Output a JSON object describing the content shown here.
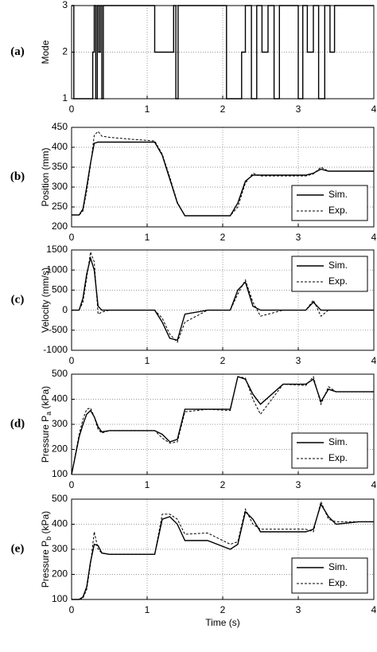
{
  "chart_data": [
    {
      "type": "line",
      "panel_label": "(a)",
      "ylabel": [
        "Mode"
      ],
      "x": [
        0,
        0.03,
        0.03,
        0.28,
        0.28,
        0.3,
        0.3,
        0.32,
        0.32,
        0.34,
        0.34,
        0.36,
        0.36,
        0.38,
        0.38,
        0.4,
        0.4,
        0.42,
        0.42,
        1.1,
        1.1,
        1.35,
        1.35,
        1.38,
        1.38,
        1.41,
        1.41,
        1.44,
        1.44,
        2.05,
        2.05,
        2.25,
        2.25,
        2.3,
        2.3,
        2.38,
        2.38,
        2.45,
        2.45,
        2.52,
        2.52,
        2.6,
        2.6,
        2.68,
        2.68,
        2.75,
        2.75,
        2.8,
        2.8,
        3.0,
        3.0,
        3.06,
        3.06,
        3.12,
        3.12,
        3.2,
        3.2,
        3.27,
        3.27,
        3.35,
        3.35,
        3.42,
        3.42,
        3.48,
        3.48,
        3.55,
        3.55,
        4.0
      ],
      "series": [
        {
          "color": "#000000",
          "linestyle": "solid",
          "values": [
            3,
            3,
            1,
            1,
            2,
            2,
            3,
            3,
            1,
            1,
            3,
            3,
            2,
            2,
            3,
            3,
            1,
            1,
            3,
            3,
            2,
            2,
            3,
            3,
            1,
            1,
            3,
            3,
            3,
            3,
            1,
            1,
            2,
            2,
            3,
            3,
            1,
            1,
            3,
            3,
            2,
            2,
            3,
            3,
            1,
            1,
            3,
            3,
            3,
            3,
            1,
            1,
            3,
            3,
            2,
            2,
            3,
            3,
            1,
            1,
            3,
            3,
            2,
            2,
            3,
            3,
            3,
            3
          ]
        }
      ],
      "xlim": [
        0,
        4
      ],
      "xticks": [
        0,
        1,
        2,
        3,
        4
      ],
      "ylim": [
        1,
        3
      ],
      "yticks": [
        1,
        2,
        3
      ],
      "grid": true
    },
    {
      "type": "line",
      "panel_label": "(b)",
      "ylabel": [
        "Position (mm)"
      ],
      "x": [
        0,
        0.1,
        0.15,
        0.2,
        0.25,
        0.3,
        0.35,
        0.4,
        0.5,
        0.8,
        1.1,
        1.2,
        1.3,
        1.4,
        1.5,
        1.8,
        2.1,
        2.2,
        2.3,
        2.4,
        2.5,
        2.8,
        3.1,
        3.2,
        3.3,
        3.4,
        3.5,
        3.8,
        4.0
      ],
      "series": [
        {
          "name": "Sim.",
          "color": "#000000",
          "linestyle": "solid",
          "values": [
            230,
            230,
            245,
            300,
            360,
            410,
            413,
            413,
            413,
            413,
            413,
            380,
            320,
            260,
            228,
            228,
            228,
            260,
            315,
            330,
            330,
            330,
            330,
            335,
            345,
            340,
            340,
            340,
            340
          ]
        },
        {
          "name": "Exp.",
          "color": "#000000",
          "linestyle": "dashed",
          "values": [
            230,
            230,
            240,
            290,
            355,
            430,
            440,
            428,
            425,
            420,
            416,
            383,
            325,
            262,
            228,
            228,
            228,
            250,
            310,
            335,
            328,
            328,
            328,
            333,
            350,
            340,
            340,
            340,
            340
          ]
        }
      ],
      "xlim": [
        0,
        4
      ],
      "xticks": [
        0,
        1,
        2,
        3,
        4
      ],
      "ylim": [
        200,
        450
      ],
      "yticks": [
        200,
        250,
        300,
        350,
        400,
        450
      ],
      "grid": true,
      "legend": "lower right"
    },
    {
      "type": "line",
      "panel_label": "(c)",
      "ylabel": [
        "Velocity (mm/s)"
      ],
      "x": [
        0,
        0.1,
        0.15,
        0.2,
        0.25,
        0.3,
        0.35,
        0.4,
        0.5,
        0.8,
        1.1,
        1.2,
        1.3,
        1.4,
        1.5,
        1.8,
        2.1,
        2.2,
        2.3,
        2.4,
        2.5,
        2.8,
        3.1,
        3.2,
        3.3,
        3.4,
        3.5,
        3.8,
        4.0
      ],
      "series": [
        {
          "name": "Sim.",
          "color": "#000000",
          "linestyle": "solid",
          "values": [
            0,
            0,
            300,
            900,
            1300,
            1000,
            100,
            0,
            0,
            0,
            0,
            -300,
            -700,
            -750,
            -100,
            0,
            0,
            500,
            700,
            100,
            0,
            0,
            0,
            200,
            0,
            0,
            0,
            0,
            0
          ]
        },
        {
          "name": "Exp.",
          "color": "#000000",
          "linestyle": "dashed",
          "values": [
            0,
            0,
            200,
            800,
            1450,
            1200,
            -100,
            -50,
            0,
            0,
            0,
            -200,
            -600,
            -800,
            -300,
            0,
            0,
            400,
            750,
            200,
            -150,
            0,
            0,
            250,
            -150,
            0,
            0,
            0,
            0
          ]
        }
      ],
      "xlim": [
        0,
        4
      ],
      "xticks": [
        0,
        1,
        2,
        3,
        4
      ],
      "ylim": [
        -1000,
        1500
      ],
      "yticks": [
        -1000,
        -500,
        0,
        500,
        1000,
        1500
      ],
      "grid": true,
      "legend": "upper right"
    },
    {
      "type": "line",
      "panel_label": "(d)",
      "ylabel": [
        "Pressure P",
        "a",
        " (kPa)"
      ],
      "x": [
        0,
        0.1,
        0.15,
        0.2,
        0.25,
        0.3,
        0.35,
        0.4,
        0.5,
        0.8,
        1.1,
        1.2,
        1.3,
        1.4,
        1.5,
        1.8,
        2.1,
        2.2,
        2.3,
        2.4,
        2.5,
        2.8,
        3.1,
        3.2,
        3.3,
        3.4,
        3.5,
        3.8,
        4.0
      ],
      "series": [
        {
          "name": "Sim.",
          "color": "#000000",
          "linestyle": "solid",
          "values": [
            100,
            250,
            300,
            340,
            355,
            330,
            290,
            270,
            275,
            275,
            275,
            260,
            230,
            240,
            360,
            360,
            360,
            490,
            480,
            420,
            380,
            460,
            460,
            480,
            390,
            440,
            430,
            430,
            430
          ]
        },
        {
          "name": "Exp.",
          "color": "#000000",
          "linestyle": "dashed",
          "values": [
            100,
            260,
            320,
            360,
            365,
            330,
            280,
            265,
            275,
            275,
            275,
            245,
            225,
            230,
            350,
            360,
            355,
            490,
            485,
            400,
            340,
            460,
            455,
            490,
            380,
            450,
            430,
            430,
            430
          ]
        }
      ],
      "xlim": [
        0,
        4
      ],
      "xticks": [
        0,
        1,
        2,
        3,
        4
      ],
      "ylim": [
        100,
        500
      ],
      "yticks": [
        100,
        200,
        300,
        400,
        500
      ],
      "grid": true,
      "legend": "lower right"
    },
    {
      "type": "line",
      "panel_label": "(e)",
      "ylabel": [
        "Pressure P",
        "b",
        " (kPa)"
      ],
      "xlabel": "Time (s)",
      "x": [
        0,
        0.1,
        0.15,
        0.2,
        0.25,
        0.3,
        0.35,
        0.4,
        0.5,
        0.8,
        1.1,
        1.2,
        1.3,
        1.4,
        1.5,
        1.8,
        2.1,
        2.2,
        2.3,
        2.4,
        2.5,
        2.8,
        3.1,
        3.2,
        3.3,
        3.4,
        3.5,
        3.8,
        4.0
      ],
      "series": [
        {
          "name": "Sim.",
          "color": "#000000",
          "linestyle": "solid",
          "values": [
            100,
            100,
            110,
            150,
            250,
            320,
            315,
            285,
            280,
            280,
            280,
            420,
            430,
            400,
            335,
            335,
            300,
            320,
            450,
            420,
            370,
            370,
            370,
            380,
            480,
            430,
            400,
            410,
            410
          ]
        },
        {
          "name": "Exp.",
          "color": "#000000",
          "linestyle": "dashed",
          "values": [
            100,
            100,
            105,
            140,
            240,
            370,
            300,
            285,
            280,
            280,
            280,
            440,
            440,
            420,
            360,
            365,
            320,
            330,
            460,
            400,
            380,
            380,
            380,
            370,
            490,
            420,
            410,
            410,
            410
          ]
        }
      ],
      "xlim": [
        0,
        4
      ],
      "xticks": [
        0,
        1,
        2,
        3,
        4
      ],
      "ylim": [
        100,
        500
      ],
      "yticks": [
        100,
        200,
        300,
        400,
        500
      ],
      "grid": true,
      "legend": "lower right"
    }
  ]
}
